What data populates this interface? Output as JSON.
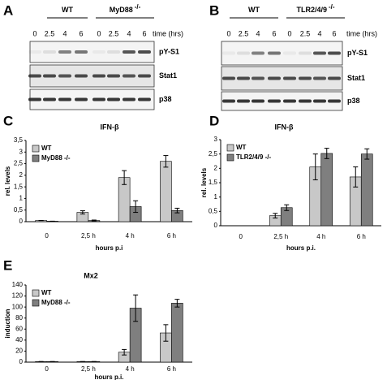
{
  "blots": [
    {
      "panel": "A",
      "genotypes": [
        {
          "name": "WT"
        },
        {
          "name": "MyD88",
          "superscript": "-/-"
        }
      ],
      "lanes": [
        "0",
        "2.5",
        "4",
        "6",
        "0",
        "2.5",
        "4",
        "6"
      ],
      "time_label": "time (hrs)",
      "rows": [
        "pY-S1",
        "Stat1",
        "p38"
      ]
    },
    {
      "panel": "B",
      "genotypes": [
        {
          "name": "WT"
        },
        {
          "name": "TLR2/4/9",
          "superscript": "-/-"
        }
      ],
      "lanes": [
        "0",
        "2.5",
        "4",
        "6",
        "0",
        "2.5",
        "4",
        "6"
      ],
      "time_label": "time (hrs)",
      "rows": [
        "pY-S1",
        "Stat1",
        "p38"
      ]
    }
  ],
  "chart_data": [
    {
      "type": "bar",
      "panel": "C",
      "title": "IFN-β",
      "y_label": "rel. levels",
      "x_label": "hours p.i",
      "categories": [
        "0",
        "2,5 h",
        "4 h",
        "6 h"
      ],
      "series": [
        {
          "name": "WT",
          "color": "#c8c8c8",
          "values": [
            0.05,
            0.4,
            1.9,
            2.6
          ],
          "errors": [
            0,
            0.07,
            0.3,
            0.25
          ]
        },
        {
          "name": "MyD88 -/-",
          "color": "#7f7f7f",
          "values": [
            0.02,
            0.05,
            0.65,
            0.48
          ],
          "errors": [
            0,
            0.02,
            0.25,
            0.1
          ]
        }
      ],
      "ylim": [
        0,
        3.5
      ],
      "yticks": [
        0,
        {
          "value": 0.5,
          "label": "0,5"
        },
        1,
        {
          "value": 1.5,
          "label": "1,5"
        },
        2,
        {
          "value": 2.5,
          "label": "2,5"
        },
        3,
        {
          "value": 3.5,
          "label": "3,5"
        }
      ],
      "legend": "upper-left"
    },
    {
      "type": "bar",
      "panel": "D",
      "title": "IFN-β",
      "y_label": "rel. levels",
      "x_label": "hours p.i.",
      "categories": [
        "0",
        "2,5 h",
        "4 h",
        "6 h"
      ],
      "series": [
        {
          "name": "WT",
          "color": "#c8c8c8",
          "values": [
            0,
            0.35,
            2.05,
            1.7
          ],
          "errors": [
            0,
            0.08,
            0.45,
            0.35
          ]
        },
        {
          "name": "TLR2/4/9 -/-",
          "color": "#7f7f7f",
          "values": [
            0,
            0.63,
            2.52,
            2.5
          ],
          "errors": [
            0,
            0.1,
            0.18,
            0.18
          ]
        }
      ],
      "ylim": [
        0,
        3
      ],
      "yticks": [
        0,
        {
          "value": 0.5,
          "label": "0,5"
        },
        1,
        {
          "value": 1.5,
          "label": "1,5"
        },
        2,
        {
          "value": 2.5,
          "label": "2,5"
        },
        3
      ],
      "legend": "upper-left"
    },
    {
      "type": "bar",
      "panel": "E",
      "title": "Mx2",
      "y_label": "induction",
      "x_label": "hours p.i.",
      "categories": [
        "0",
        "2,5 h",
        "4 h",
        "6 h"
      ],
      "series": [
        {
          "name": "WT",
          "color": "#c8c8c8",
          "values": [
            1,
            1,
            18,
            53
          ],
          "errors": [
            0,
            0,
            5,
            15
          ]
        },
        {
          "name": "MyD88 -/-",
          "color": "#7f7f7f",
          "values": [
            1,
            1,
            98,
            107
          ],
          "errors": [
            0,
            0,
            24,
            7
          ]
        }
      ],
      "ylim": [
        0,
        140
      ],
      "yticks": [
        0,
        20,
        40,
        60,
        80,
        100,
        120,
        140
      ],
      "legend": "upper-left"
    }
  ]
}
